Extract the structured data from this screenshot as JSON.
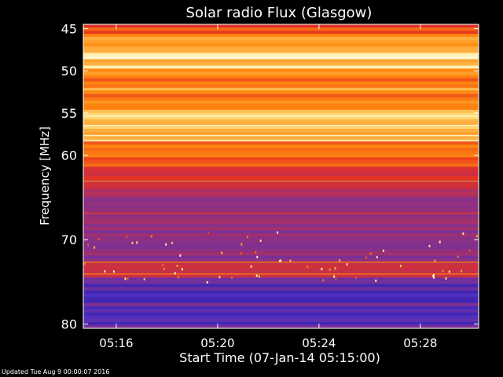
{
  "chart_data": {
    "type": "heatmap",
    "title": "Solar radio Flux (Glasgow)",
    "xlabel": "Start Time (07-Jan-14 05:15:00)",
    "ylabel": "Frequency [MHz]",
    "x_ticks": [
      "05:16",
      "05:20",
      "05:24",
      "05:28"
    ],
    "x_tick_minutes": [
      1,
      5,
      9,
      13
    ],
    "xlim_minutes": [
      -0.3,
      15.3
    ],
    "y_ticks": [
      45,
      50,
      55,
      60,
      70,
      80
    ],
    "ylim": [
      44.5,
      80.5
    ],
    "grid": false,
    "colormap": [
      "#1a0a8c",
      "#5030c0",
      "#b03060",
      "#e83020",
      "#ff8a10",
      "#ffe080",
      "#fffce0"
    ],
    "bands": [
      {
        "from": 44.5,
        "to": 45.5,
        "level": 0.55
      },
      {
        "from": 45.5,
        "to": 48.0,
        "level": 0.7
      },
      {
        "from": 48.0,
        "to": 48.8,
        "level": 0.92
      },
      {
        "from": 48.8,
        "to": 49.3,
        "level": 0.7
      },
      {
        "from": 49.3,
        "to": 49.7,
        "level": 0.9
      },
      {
        "from": 49.7,
        "to": 50.4,
        "level": 0.68
      },
      {
        "from": 50.4,
        "to": 54.5,
        "level": 0.63
      },
      {
        "from": 54.5,
        "to": 58.5,
        "level": 0.76
      },
      {
        "from": 58.5,
        "to": 61.5,
        "level": 0.6
      },
      {
        "from": 61.5,
        "to": 64.0,
        "level": 0.45
      },
      {
        "from": 64.0,
        "to": 68.5,
        "level": 0.3
      },
      {
        "from": 68.5,
        "to": 72.5,
        "level": 0.25
      },
      {
        "from": 72.5,
        "to": 74.5,
        "level": 0.42
      },
      {
        "from": 74.5,
        "to": 80.5,
        "level": 0.18
      }
    ]
  },
  "footer": "Updated Tue Aug  9 00:00:07 2016"
}
